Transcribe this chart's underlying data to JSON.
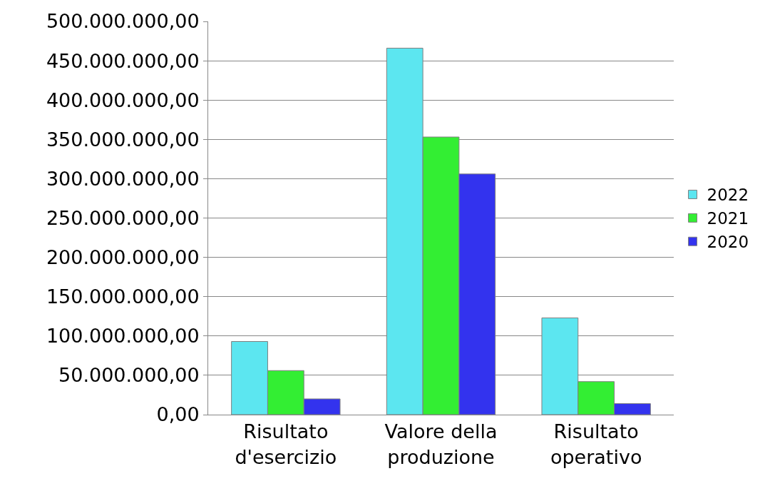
{
  "chart_data": {
    "type": "bar",
    "categories": [
      "Risultato d'esercizio",
      "Valore della produzione",
      "Risultato operativo"
    ],
    "series": [
      {
        "name": "2022",
        "color": "#5ce6f0",
        "values": [
          93000000,
          466000000,
          123000000
        ]
      },
      {
        "name": "2021",
        "color": "#33ee33",
        "values": [
          56000000,
          353000000,
          42000000
        ]
      },
      {
        "name": "2020",
        "color": "#3333ee",
        "values": [
          20000000,
          306000000,
          14000000
        ]
      }
    ],
    "ylim": [
      0,
      500000000
    ],
    "yticks": [
      {
        "value": 0,
        "label": "0,00"
      },
      {
        "value": 50000000,
        "label": "50.000.000,00"
      },
      {
        "value": 100000000,
        "label": "100.000.000,00"
      },
      {
        "value": 150000000,
        "label": "150.000.000,00"
      },
      {
        "value": 200000000,
        "label": "200.000.000,00"
      },
      {
        "value": 250000000,
        "label": "250.000.000,00"
      },
      {
        "value": 300000000,
        "label": "300.000.000,00"
      },
      {
        "value": 350000000,
        "label": "350.000.000,00"
      },
      {
        "value": 400000000,
        "label": "400.000.000,00"
      },
      {
        "value": 450000000,
        "label": "450.000.000,00"
      },
      {
        "value": 500000000,
        "label": "500.000.000,00"
      }
    ],
    "grid": "y",
    "legend": "right"
  }
}
